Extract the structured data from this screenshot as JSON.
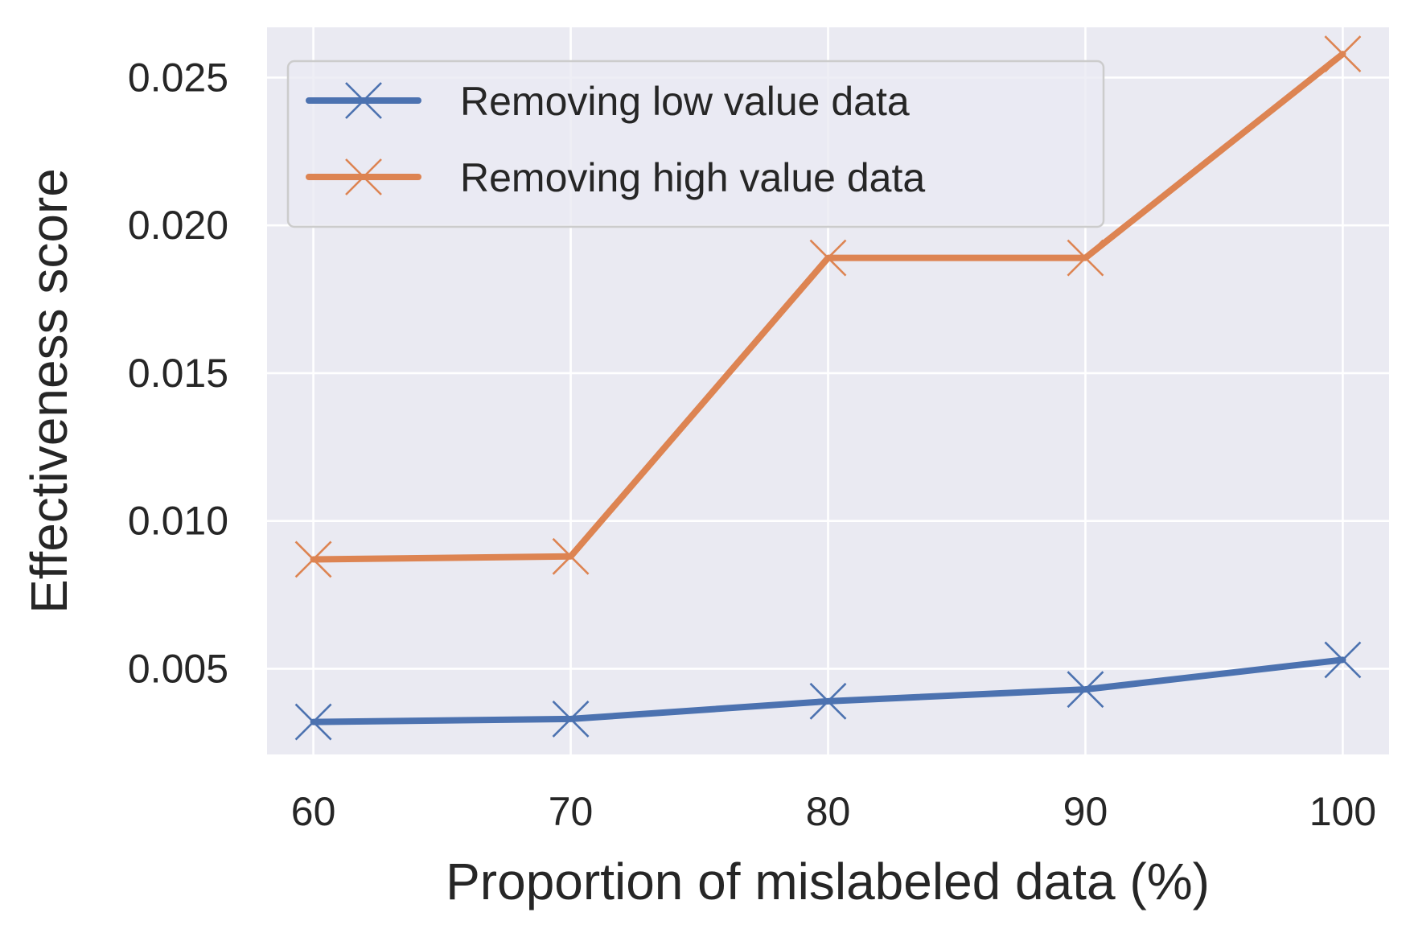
{
  "chart_data": {
    "type": "line",
    "title": "",
    "xlabel": "Proportion of mislabeled data (%)",
    "ylabel": "Effectiveness score",
    "x": [
      60,
      70,
      80,
      90,
      100
    ],
    "xticks": [
      "60",
      "70",
      "80",
      "90",
      "100"
    ],
    "yticks": [
      "0.005",
      "0.010",
      "0.015",
      "0.020",
      "0.025"
    ],
    "ytick_values": [
      0.005,
      0.01,
      0.015,
      0.02,
      0.025
    ],
    "xlim": [
      58.2,
      101.8
    ],
    "ylim": [
      0.0021,
      0.0267
    ],
    "grid": true,
    "legend_position": "top-left",
    "series": [
      {
        "name": "Removing low value data",
        "color": "#4C72B0",
        "values": [
          0.0032,
          0.0033,
          0.0039,
          0.0043,
          0.0053
        ]
      },
      {
        "name": "Removing high value data",
        "color": "#DD8452",
        "values": [
          0.0087,
          0.0088,
          0.0189,
          0.0189,
          0.0258
        ]
      }
    ]
  }
}
